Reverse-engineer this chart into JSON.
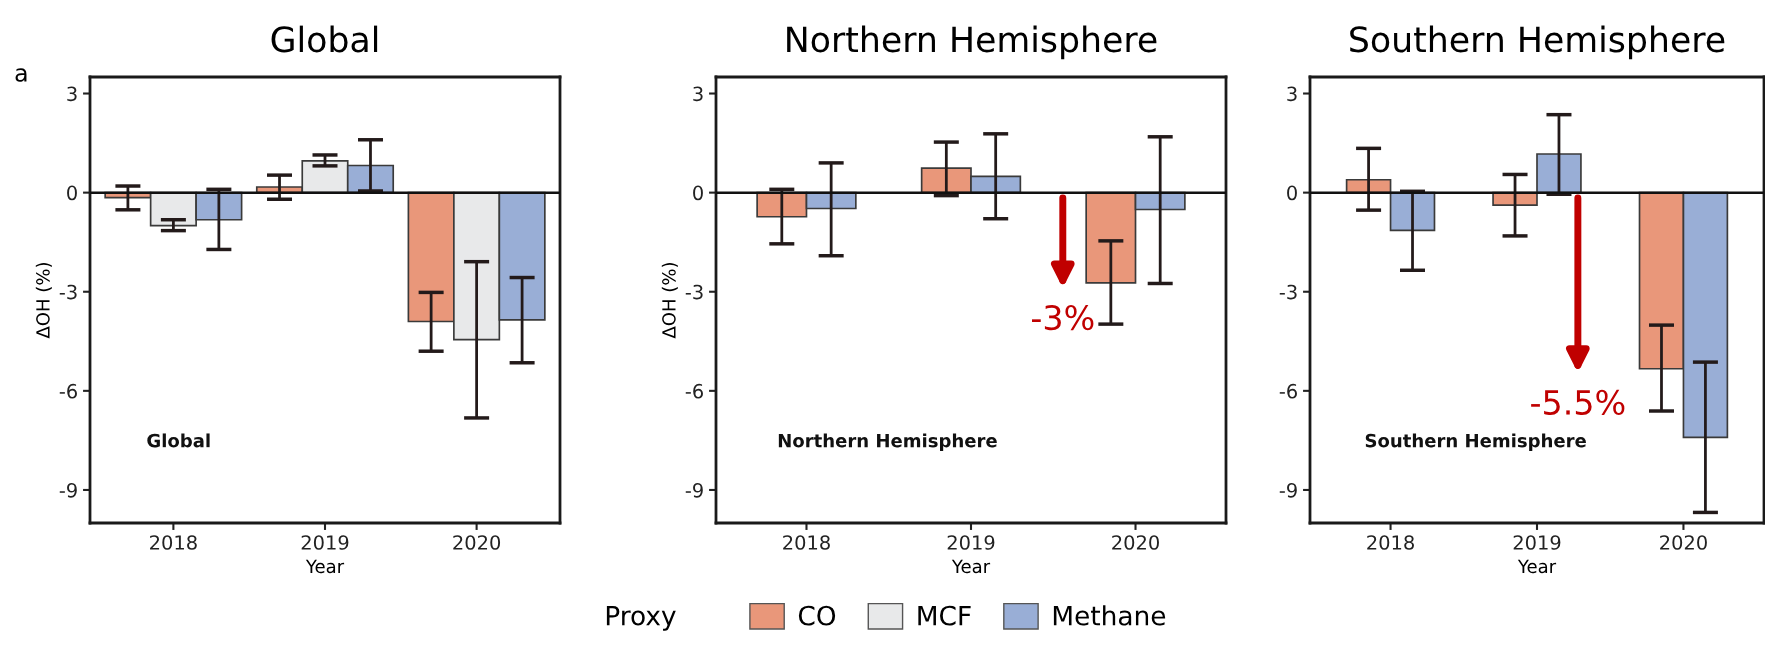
{
  "chart_data": [
    {
      "type": "bar",
      "title": "Global",
      "xlabel": "Year",
      "ylabel": "ΔOH (%)",
      "categories": [
        "2018",
        "2019",
        "2020"
      ],
      "series": [
        {
          "name": "CO",
          "color": "#e9977a",
          "values": [
            -0.15,
            0.17,
            -3.9
          ],
          "errors": [
            [
              -0.52,
              0.2
            ],
            [
              -0.2,
              0.53
            ],
            [
              -4.8,
              -3.02
            ]
          ]
        },
        {
          "name": "MCF",
          "color": "#e8e9ea",
          "values": [
            -1.0,
            0.96,
            -4.45
          ],
          "errors": [
            [
              -1.15,
              -0.82
            ],
            [
              0.81,
              1.14
            ],
            [
              -6.82,
              -2.09
            ]
          ]
        },
        {
          "name": "Methane",
          "color": "#99aed6",
          "values": [
            -0.82,
            0.82,
            -3.85
          ],
          "errors": [
            [
              -1.72,
              0.1
            ],
            [
              0.05,
              1.6
            ],
            [
              -5.15,
              -2.57
            ]
          ]
        }
      ],
      "ylim": [
        -10,
        3.5
      ],
      "yticks": [
        3,
        0,
        -3,
        -6,
        -9
      ],
      "legend": "bottom",
      "legend_title": "Proxy",
      "annotations": [
        "a",
        "Global"
      ]
    },
    {
      "type": "bar",
      "title": "Northern Hemisphere",
      "xlabel": "Year",
      "ylabel": "ΔOH (%)",
      "categories": [
        "2018",
        "2019",
        "2020"
      ],
      "series": [
        {
          "color": "#e9977a",
          "values": [
            -0.73,
            0.74,
            -2.73
          ],
          "errors": [
            [
              -1.55,
              0.1
            ],
            [
              -0.09,
              1.53
            ],
            [
              -3.98,
              -1.46
            ]
          ]
        },
        {
          "color": "#99aed6",
          "values": [
            -0.48,
            0.49,
            -0.51
          ],
          "errors": [
            [
              -1.91,
              0.9
            ],
            [
              -0.79,
              1.78
            ],
            [
              -2.75,
              1.69
            ]
          ]
        }
      ],
      "ylim": [
        -10,
        3.5
      ],
      "yticks": [
        3,
        0,
        -3,
        -6,
        -9
      ],
      "annotations": [
        "Northern Hemisphere",
        "-3%"
      ]
    },
    {
      "type": "bar",
      "title": "Southern Hemisphere",
      "xlabel": "Year",
      "categories": [
        "2018",
        "2019",
        "2020"
      ],
      "series": [
        {
          "color": "#e9977a",
          "values": [
            0.39,
            -0.38,
            -5.33
          ],
          "errors": [
            [
              -0.53,
              1.34
            ],
            [
              -1.31,
              0.55
            ],
            [
              -6.61,
              -4.01
            ]
          ]
        },
        {
          "color": "#99aed6",
          "values": [
            -1.14,
            1.17,
            -7.41
          ],
          "errors": [
            [
              -2.35,
              0.04
            ],
            [
              -0.05,
              2.36
            ],
            [
              -9.68,
              -5.13
            ]
          ]
        }
      ],
      "ylim": [
        -10,
        3.5
      ],
      "yticks": [
        3,
        0,
        -3,
        -6,
        -9
      ],
      "annotations": [
        "Southern Hemisphere",
        "-5.5%"
      ]
    }
  ]
}
